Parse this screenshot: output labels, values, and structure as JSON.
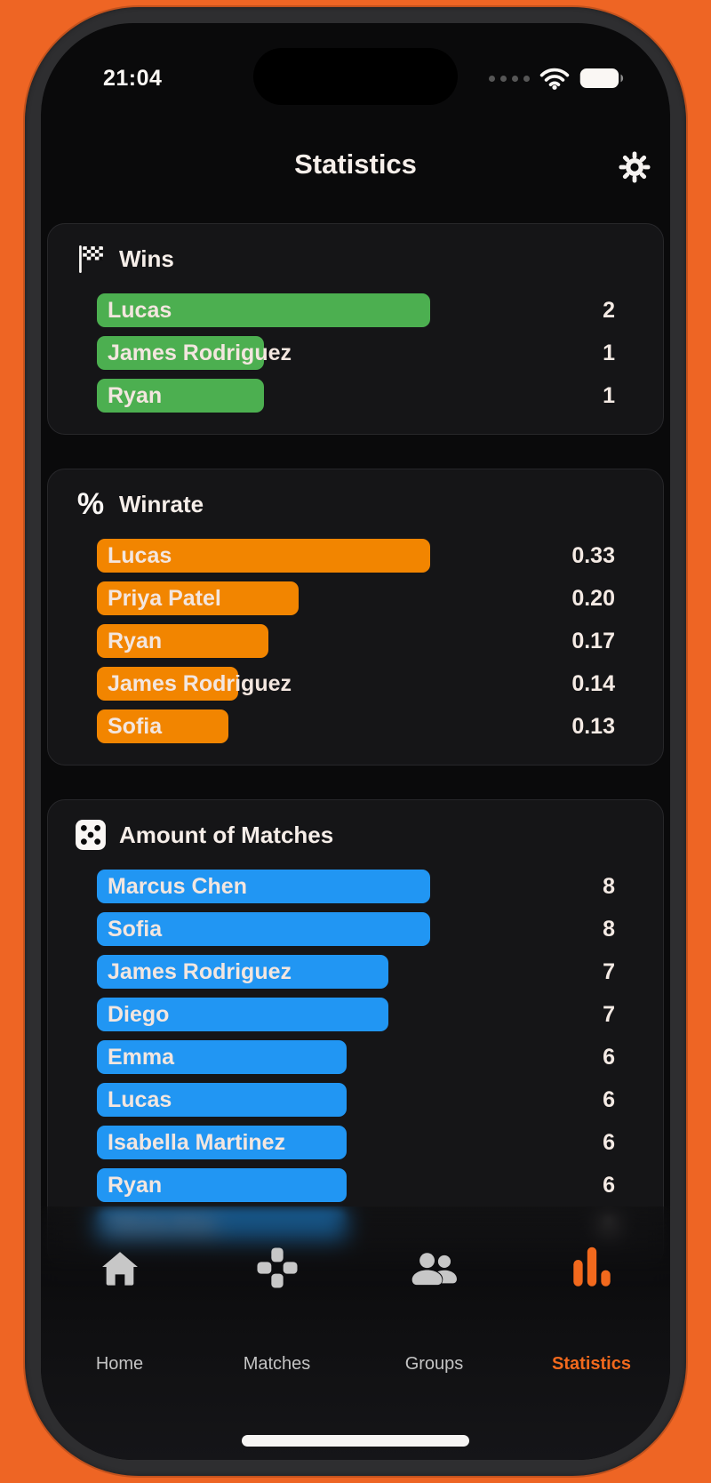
{
  "status_bar": {
    "time": "21:04",
    "signal_dots": 4,
    "icons": [
      "cellular-signal",
      "wifi",
      "battery-full"
    ]
  },
  "header": {
    "title": "Statistics",
    "settings_icon": "gear"
  },
  "colors": {
    "outer_background": "#EE6524",
    "bezel": "#2E2E30",
    "screen": "#0A0A0B",
    "card": "#151517",
    "green": "#4CAF50",
    "orange": "#F28500",
    "blue": "#2196F3",
    "text_cream": "#F3E6DF",
    "tab_active": "#F2691D",
    "tab_inactive": "#C4C4C4"
  },
  "cards": [
    {
      "id": "wins",
      "title": "Wins",
      "icon": "checkered-flag",
      "color_key": "green",
      "chart_data": {
        "type": "bar",
        "categories": [
          "Lucas",
          "James Rodriguez",
          "Ryan"
        ],
        "values": [
          2,
          1,
          1
        ]
      },
      "items": [
        {
          "name": "Lucas",
          "value": "2"
        },
        {
          "name": "James Rodriguez",
          "value": "1"
        },
        {
          "name": "Ryan",
          "value": "1"
        }
      ]
    },
    {
      "id": "winrate",
      "title": "Winrate",
      "icon": "percent",
      "color_key": "orange",
      "chart_data": {
        "type": "bar",
        "categories": [
          "Lucas",
          "Priya Patel",
          "Ryan",
          "James Rodriguez",
          "Sofia"
        ],
        "values": [
          0.33,
          0.2,
          0.17,
          0.14,
          0.13
        ]
      },
      "items": [
        {
          "name": "Lucas",
          "value": "0.33"
        },
        {
          "name": "Priya Patel",
          "value": "0.20"
        },
        {
          "name": "Ryan",
          "value": "0.17"
        },
        {
          "name": "James Rodriguez",
          "value": "0.14"
        },
        {
          "name": "Sofia",
          "value": "0.13"
        }
      ]
    },
    {
      "id": "matches",
      "title": "Amount of Matches",
      "icon": "dice",
      "color_key": "blue",
      "chart_data": {
        "type": "bar",
        "categories": [
          "Marcus Chen",
          "Sofia",
          "James Rodriguez",
          "Diego",
          "Emma",
          "Lucas",
          "Isabella Martinez",
          "Ryan",
          "Olivia Kim"
        ],
        "values": [
          8,
          8,
          7,
          7,
          6,
          6,
          6,
          6,
          6
        ]
      },
      "items": [
        {
          "name": "Marcus Chen",
          "value": "8"
        },
        {
          "name": "Sofia",
          "value": "8"
        },
        {
          "name": "James Rodriguez",
          "value": "7"
        },
        {
          "name": "Diego",
          "value": "7"
        },
        {
          "name": "Emma",
          "value": "6"
        },
        {
          "name": "Lucas",
          "value": "6"
        },
        {
          "name": "Isabella Martinez",
          "value": "6"
        },
        {
          "name": "Ryan",
          "value": "6"
        },
        {
          "name": "Olivia Kim",
          "value": "6",
          "blurred": true
        }
      ]
    }
  ],
  "tab_bar": {
    "items": [
      {
        "label": "Home",
        "icon": "home",
        "active": false
      },
      {
        "label": "Matches",
        "icon": "dpad",
        "active": false
      },
      {
        "label": "Groups",
        "icon": "people",
        "active": false
      },
      {
        "label": "Statistics",
        "icon": "chart-bars",
        "active": true
      }
    ]
  }
}
